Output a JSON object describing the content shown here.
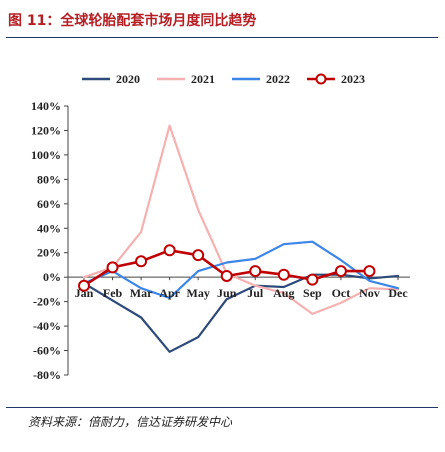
{
  "figure": {
    "title": "图 11：全球轮胎配套市场月度同比趋势",
    "source": "资料来源：倍耐力，信达证券研发中心"
  },
  "chart_data": {
    "type": "line",
    "categories": [
      "Jan",
      "Feb",
      "Mar",
      "Apr",
      "May",
      "Jun",
      "Jul",
      "Aug",
      "Sep",
      "Oct",
      "Nov",
      "Dec"
    ],
    "y_tick_labels": [
      "140%",
      "120%",
      "100%",
      "80%",
      "60%",
      "40%",
      "20%",
      "0%",
      "-20%",
      "-40%",
      "-60%",
      "-80%"
    ],
    "ylim": [
      -80,
      140
    ],
    "y_unit": "%",
    "legend_position": "top",
    "grid": false,
    "series": [
      {
        "name": "2020",
        "color": "#2e4a7a",
        "marker": false,
        "values": [
          -5,
          -19,
          -33,
          -61,
          -49,
          -18,
          -7,
          -8,
          2,
          2,
          -1,
          1
        ]
      },
      {
        "name": "2021",
        "color": "#f7b0b0",
        "marker": false,
        "values": [
          0,
          8,
          37,
          124,
          55,
          3,
          -7,
          -13,
          -30,
          -21,
          -9,
          -10
        ]
      },
      {
        "name": "2022",
        "color": "#3b86e8",
        "marker": false,
        "values": [
          -5,
          5,
          -9,
          -17,
          5,
          12,
          15,
          27,
          29,
          14,
          -3,
          -9
        ]
      },
      {
        "name": "2023",
        "color": "#c00000",
        "marker": true,
        "values": [
          -7,
          8,
          13,
          22,
          18,
          1,
          5,
          2,
          -2,
          5,
          5,
          null
        ]
      }
    ]
  }
}
